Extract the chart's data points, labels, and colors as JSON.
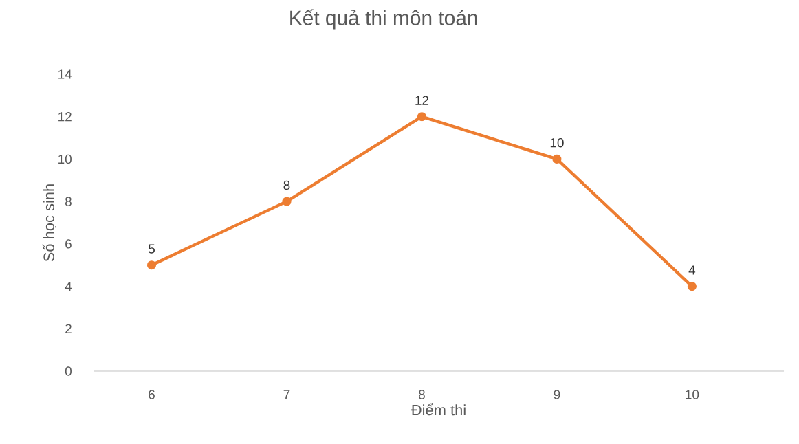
{
  "chart_data": {
    "type": "line",
    "title": "Kết quả thi môn toán",
    "xlabel": "Điểm thi",
    "ylabel": "Số học sinh",
    "categories": [
      "6",
      "7",
      "8",
      "9",
      "10"
    ],
    "series": [
      {
        "color": "#ed7d31",
        "values": [
          5,
          8,
          12,
          10,
          4
        ]
      }
    ],
    "ylim": [
      0,
      14
    ],
    "yticks": [
      0,
      2,
      4,
      6,
      8,
      10,
      12,
      14
    ],
    "marker": "circle",
    "line_style": "solid",
    "data_labels": true,
    "grid": false,
    "legend": false
  }
}
